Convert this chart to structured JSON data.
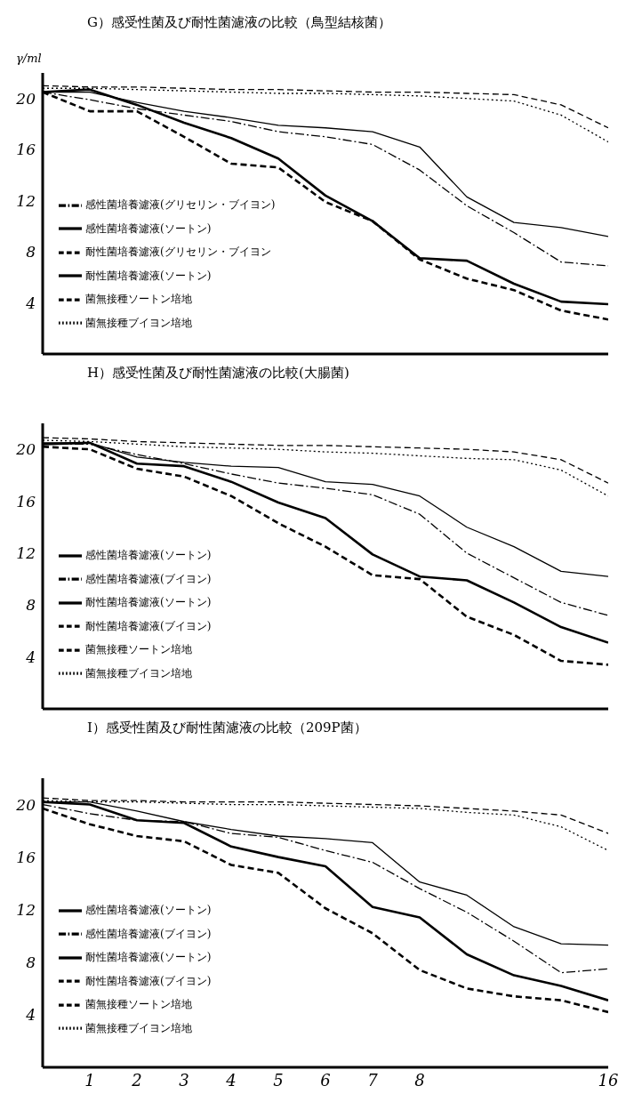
{
  "chart_data": [
    {
      "type": "line",
      "title": "G）感受性菌及び耐性菌濾液の比較（鳥型結核菌）",
      "ylabel": "γ/ml",
      "categories": [
        null,
        "1",
        "2",
        "3",
        "4",
        "5",
        "6",
        "7",
        "8",
        null,
        null,
        null,
        "16"
      ],
      "ylim": [
        0,
        22
      ],
      "yticks": [
        4,
        8,
        12,
        16,
        20
      ],
      "tick_labels": "y",
      "legend": "left",
      "marker": "none",
      "series": [
        {
          "name": "耐性菌培養濾液(ソートン)",
          "color": "#000000",
          "line_style": "solid",
          "values": [
            20.5,
            20.7,
            19.5,
            18.1,
            16.9,
            15.3,
            12.4,
            10.4,
            7.5,
            7.3,
            5.5,
            4.1,
            3.9
          ]
        },
        {
          "name": "耐性菌培養濾液(グリセリン・ブイヨン",
          "color": "#000000",
          "line_style": "dashed",
          "values": [
            20.5,
            19.0,
            19.0,
            17.0,
            14.9,
            14.6,
            11.9,
            10.4,
            7.4,
            5.9,
            5.0,
            3.4,
            2.7
          ]
        },
        {
          "name": "感性菌培養濾液(ソートン)",
          "color": "#000000",
          "line_style": "solid",
          "values": [
            20.5,
            20.5,
            19.7,
            19.0,
            18.5,
            17.9,
            17.7,
            17.4,
            16.2,
            12.3,
            10.3,
            9.9,
            9.2
          ]
        },
        {
          "name": "感性菌培養濾液(グリセリン・ブイヨン)",
          "color": "#000000",
          "line_style": "dashdot",
          "values": [
            20.5,
            19.9,
            19.2,
            18.7,
            18.2,
            17.4,
            17.0,
            16.4,
            14.4,
            11.6,
            9.5,
            7.2,
            6.9
          ]
        },
        {
          "name": "菌無接種ソートン培地",
          "color": "#000000",
          "line_style": "dashed",
          "values": [
            21.0,
            20.9,
            20.9,
            20.8,
            20.7,
            20.7,
            20.6,
            20.5,
            20.5,
            20.4,
            20.3,
            19.5,
            17.7
          ]
        },
        {
          "name": "菌無接種ブイヨン培地",
          "color": "#000000",
          "line_style": "dotted",
          "values": [
            20.8,
            20.8,
            20.7,
            20.6,
            20.5,
            20.4,
            20.4,
            20.3,
            20.2,
            20.0,
            19.8,
            18.7,
            16.6
          ]
        }
      ]
    },
    {
      "type": "line",
      "title": "H）感受性菌及び耐性菌濾液の比較(大腸菌)",
      "categories": [
        null,
        "1",
        "2",
        "3",
        "4",
        "5",
        "6",
        "7",
        "8",
        null,
        null,
        null,
        "16"
      ],
      "ylim": [
        0,
        22
      ],
      "yticks": [
        4,
        8,
        12,
        16,
        20
      ],
      "tick_labels": "y",
      "legend": "left",
      "marker": "none",
      "series": [
        {
          "name": "耐性菌培養濾液(ソートン)",
          "color": "#000000",
          "line_style": "solid",
          "values": [
            20.4,
            20.5,
            18.9,
            18.7,
            17.5,
            15.9,
            14.7,
            11.9,
            10.2,
            9.9,
            8.2,
            6.3,
            5.1
          ]
        },
        {
          "name": "耐性菌培養濾液(ブイヨン)",
          "color": "#000000",
          "line_style": "dashed",
          "values": [
            20.2,
            20.0,
            18.5,
            17.9,
            16.4,
            14.3,
            12.5,
            10.3,
            10.0,
            7.1,
            5.7,
            3.7,
            3.4
          ]
        },
        {
          "name": "感性菌培養濾液(ソートン)",
          "color": "#000000",
          "line_style": "solid",
          "values": [
            20.5,
            20.5,
            19.4,
            19.0,
            18.7,
            18.6,
            17.5,
            17.3,
            16.4,
            14.0,
            12.5,
            10.6,
            10.2
          ]
        },
        {
          "name": "感性菌培養濾液(ブイヨン)",
          "color": "#000000",
          "line_style": "dashdot",
          "values": [
            20.4,
            20.4,
            19.6,
            18.9,
            18.1,
            17.4,
            17.0,
            16.5,
            15.0,
            12.0,
            10.1,
            8.2,
            7.2
          ]
        },
        {
          "name": "菌無接種ソートン培地",
          "color": "#000000",
          "line_style": "dashed",
          "values": [
            20.9,
            20.8,
            20.6,
            20.5,
            20.4,
            20.3,
            20.3,
            20.2,
            20.1,
            20.0,
            19.8,
            19.2,
            17.4
          ]
        },
        {
          "name": "菌無接種ブイヨン培地",
          "color": "#000000",
          "line_style": "dotted",
          "values": [
            20.7,
            20.6,
            20.4,
            20.2,
            20.1,
            20.0,
            19.8,
            19.7,
            19.5,
            19.3,
            19.2,
            18.4,
            16.4
          ]
        }
      ]
    },
    {
      "type": "line",
      "title": "I）感受性菌及び耐性菌濾液の比較（209P菌）",
      "categories": [
        null,
        "1",
        "2",
        "3",
        "4",
        "5",
        "6",
        "7",
        "8",
        null,
        null,
        null,
        "16"
      ],
      "ylim": [
        0,
        22
      ],
      "yticks": [
        4,
        8,
        12,
        16,
        20
      ],
      "legend": "left",
      "marker": "none",
      "series": [
        {
          "name": "耐性菌培養濾液(ソートン)",
          "color": "#000000",
          "line_style": "solid",
          "values": [
            20.2,
            20.0,
            18.8,
            18.6,
            16.8,
            16.0,
            15.3,
            12.2,
            11.4,
            8.6,
            7.0,
            6.2,
            5.1
          ]
        },
        {
          "name": "耐性菌培養濾液(ブイヨン)",
          "color": "#000000",
          "line_style": "dashed",
          "values": [
            19.7,
            18.5,
            17.6,
            17.2,
            15.4,
            14.8,
            12.1,
            10.2,
            7.4,
            6.0,
            5.4,
            5.1,
            4.2
          ]
        },
        {
          "name": "感性菌培養濾液(ソートン)",
          "color": "#000000",
          "line_style": "solid",
          "values": [
            20.2,
            20.2,
            19.5,
            18.7,
            18.1,
            17.6,
            17.4,
            17.1,
            14.1,
            13.1,
            10.7,
            9.4,
            9.3
          ]
        },
        {
          "name": "感性菌培養濾液(ブイヨン)",
          "color": "#000000",
          "line_style": "dashdot",
          "values": [
            20.0,
            19.3,
            18.8,
            18.7,
            17.8,
            17.5,
            16.5,
            15.6,
            13.6,
            11.8,
            9.6,
            7.2,
            7.5
          ]
        },
        {
          "name": "菌無接種ソートン培地",
          "color": "#000000",
          "line_style": "dashed",
          "values": [
            20.5,
            20.3,
            20.3,
            20.2,
            20.2,
            20.2,
            20.1,
            20.0,
            19.9,
            19.7,
            19.5,
            19.2,
            17.8
          ]
        },
        {
          "name": "菌無接種ブイヨン培地",
          "color": "#000000",
          "line_style": "dotted",
          "values": [
            20.3,
            20.2,
            20.2,
            20.1,
            20.0,
            20.0,
            19.9,
            19.8,
            19.7,
            19.4,
            19.2,
            18.3,
            16.5
          ]
        }
      ]
    }
  ]
}
